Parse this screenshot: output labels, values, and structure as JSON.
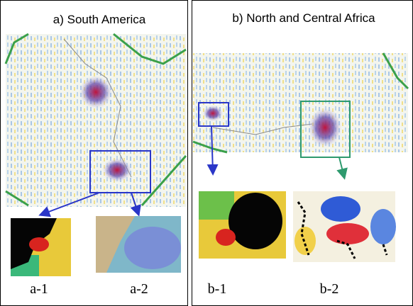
{
  "panels": [
    {
      "title": "a) South America",
      "insets": [
        {
          "label": "a-1"
        },
        {
          "label": "a-2"
        }
      ]
    },
    {
      "title": "b) North and Central Africa",
      "insets": [
        {
          "label": "b-1"
        },
        {
          "label": "b-2"
        }
      ]
    }
  ]
}
